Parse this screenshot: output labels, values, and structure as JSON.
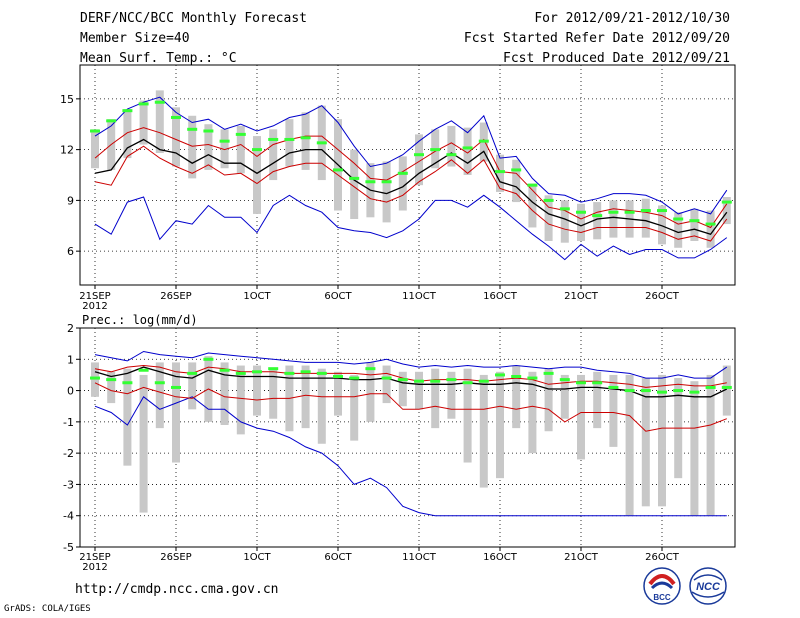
{
  "header": {
    "title": "DERF/NCC/BCC Monthly Forecast",
    "member_size": "Member Size=40",
    "variable": "Mean Surf. Temp.: °C",
    "period": "For 2012/09/21-2012/10/30",
    "refer_date": "Fcst Started Refer Date 2012/09/20",
    "produced_date": "Fcst Produced Date 2012/09/21"
  },
  "footer": {
    "url": "http://cmdp.ncc.cma.gov.cn",
    "grads": "GrADS: COLA/IGES",
    "logo_left": "BCC",
    "logo_right": "NCC"
  },
  "colors": {
    "max": "#0000cc",
    "min": "#0000cc",
    "upper": "#cc0000",
    "lower": "#cc0000",
    "mean": "#000000",
    "box": "#c8c8c8",
    "median": "#33ff33"
  },
  "chart_data": [
    {
      "type": "line",
      "title": "Mean Surf. Temp.: °C",
      "ylim": [
        4,
        17
      ],
      "yticks": [
        6,
        9,
        12,
        15
      ],
      "xticks": [
        {
          "day": 0,
          "label": "21SEP",
          "sub": "2012"
        },
        {
          "day": 5,
          "label": "26SEP"
        },
        {
          "day": 10,
          "label": "1OCT"
        },
        {
          "day": 15,
          "label": "6OCT"
        },
        {
          "day": 20,
          "label": "11OCT"
        },
        {
          "day": 25,
          "label": "16OCT"
        },
        {
          "day": 30,
          "label": "21OCT"
        },
        {
          "day": 35,
          "label": "26OCT"
        }
      ],
      "series": {
        "max": [
          12.8,
          13.4,
          14.4,
          14.8,
          15.1,
          14.2,
          13.6,
          13.8,
          13.2,
          13.5,
          13.1,
          13.4,
          13.9,
          14.1,
          14.6,
          13.6,
          12.2,
          11.0,
          11.2,
          11.7,
          12.5,
          13.2,
          13.7,
          13.0,
          14.0,
          11.5,
          11.6,
          10.3,
          9.4,
          9.3,
          8.9,
          9.1,
          9.4,
          9.4,
          9.3,
          8.9,
          8.2,
          8.5,
          8.2,
          9.6
        ],
        "upper": [
          11.5,
          12.3,
          13.0,
          13.3,
          13.0,
          12.6,
          12.2,
          12.3,
          12.0,
          12.3,
          11.6,
          12.3,
          12.6,
          12.8,
          12.8,
          12.0,
          11.2,
          10.3,
          10.2,
          10.7,
          11.3,
          11.9,
          12.4,
          11.8,
          12.6,
          10.7,
          10.6,
          9.6,
          8.6,
          8.4,
          7.9,
          8.3,
          8.5,
          8.4,
          8.3,
          8.1,
          7.6,
          7.8,
          7.4,
          8.8
        ],
        "mean": [
          10.6,
          10.8,
          12.1,
          12.6,
          12.0,
          11.8,
          11.2,
          11.7,
          11.2,
          11.2,
          10.6,
          11.2,
          11.8,
          12.0,
          12.0,
          11.1,
          10.2,
          9.6,
          9.4,
          9.8,
          10.6,
          11.2,
          11.8,
          11.2,
          11.9,
          10.1,
          9.8,
          8.9,
          8.2,
          7.9,
          7.5,
          7.9,
          8.0,
          7.9,
          7.8,
          7.5,
          7.1,
          7.3,
          7.0,
          8.3
        ],
        "lower": [
          10.1,
          9.9,
          11.6,
          12.2,
          11.5,
          11.0,
          10.6,
          11.1,
          10.5,
          10.6,
          10.0,
          10.7,
          11.0,
          11.2,
          11.2,
          10.5,
          9.8,
          9.1,
          8.9,
          9.3,
          10.1,
          10.7,
          11.4,
          10.6,
          11.4,
          9.7,
          9.4,
          8.4,
          7.6,
          7.3,
          7.1,
          7.4,
          7.4,
          7.4,
          7.4,
          7.1,
          6.7,
          6.9,
          6.6,
          7.9
        ],
        "min": [
          7.6,
          7.0,
          8.9,
          9.2,
          6.7,
          7.8,
          7.6,
          8.7,
          8.0,
          8.0,
          7.1,
          8.7,
          9.3,
          8.7,
          8.3,
          7.4,
          7.2,
          7.1,
          6.8,
          7.2,
          7.9,
          9.0,
          9.0,
          8.6,
          9.3,
          8.6,
          7.8,
          7.0,
          6.3,
          5.5,
          6.4,
          5.7,
          6.3,
          5.8,
          6.1,
          6.1,
          5.6,
          5.6,
          6.1,
          6.8
        ],
        "box_top": [
          13.2,
          13.8,
          14.4,
          14.9,
          15.5,
          14.5,
          14.0,
          13.5,
          13.2,
          13.4,
          12.8,
          13.2,
          13.8,
          14.2,
          14.6,
          13.8,
          12.0,
          11.2,
          11.3,
          11.6,
          12.9,
          13.2,
          13.4,
          13.3,
          13.6,
          11.7,
          11.4,
          10.0,
          9.3,
          9.0,
          8.8,
          8.9,
          9.0,
          9.0,
          9.1,
          8.7,
          8.3,
          8.5,
          8.4,
          9.2
        ],
        "box_bottom": [
          10.9,
          10.8,
          11.5,
          12.3,
          11.8,
          11.0,
          10.3,
          10.8,
          10.9,
          10.6,
          8.2,
          10.2,
          11.0,
          10.8,
          10.2,
          8.4,
          7.9,
          8.0,
          7.7,
          8.4,
          9.9,
          10.9,
          11.0,
          10.5,
          11.3,
          9.5,
          8.9,
          7.4,
          6.6,
          6.5,
          6.6,
          6.7,
          6.8,
          6.8,
          6.8,
          6.4,
          6.2,
          6.6,
          6.2,
          7.6
        ],
        "median": [
          13.1,
          13.7,
          14.3,
          14.7,
          14.8,
          13.9,
          13.2,
          13.1,
          12.5,
          12.9,
          12.0,
          12.6,
          12.6,
          12.7,
          12.4,
          10.8,
          10.3,
          10.1,
          10.1,
          10.6,
          11.7,
          12.0,
          11.7,
          12.1,
          12.5,
          10.7,
          10.8,
          9.9,
          9.0,
          8.5,
          8.3,
          8.1,
          8.3,
          8.3,
          8.4,
          8.4,
          7.9,
          7.8,
          7.6,
          8.9
        ]
      }
    },
    {
      "type": "line",
      "title": "Prec.: log(mm/d)",
      "ylim": [
        -5,
        2
      ],
      "yticks": [
        -5,
        -4,
        -3,
        -2,
        -1,
        0,
        1,
        2
      ],
      "xticks": [
        {
          "day": 0,
          "label": "21SEP",
          "sub": "2012"
        },
        {
          "day": 5,
          "label": "26SEP"
        },
        {
          "day": 10,
          "label": "1OCT"
        },
        {
          "day": 15,
          "label": "6OCT"
        },
        {
          "day": 20,
          "label": "11OCT"
        },
        {
          "day": 25,
          "label": "16OCT"
        },
        {
          "day": 30,
          "label": "21OCT"
        },
        {
          "day": 35,
          "label": "26OCT"
        }
      ],
      "series": {
        "max": [
          1.15,
          1.05,
          0.95,
          1.25,
          1.15,
          1.1,
          1.05,
          1.2,
          1.15,
          1.1,
          1.05,
          1.0,
          0.95,
          0.9,
          0.9,
          0.9,
          0.85,
          0.9,
          1.0,
          0.85,
          0.75,
          0.8,
          0.75,
          0.8,
          0.75,
          0.75,
          0.8,
          0.75,
          0.7,
          0.75,
          0.75,
          0.65,
          0.6,
          0.55,
          0.4,
          0.4,
          0.5,
          0.4,
          0.4,
          0.75
        ],
        "upper": [
          0.7,
          0.6,
          0.75,
          0.8,
          0.75,
          0.6,
          0.55,
          0.75,
          0.7,
          0.6,
          0.6,
          0.6,
          0.55,
          0.55,
          0.55,
          0.55,
          0.55,
          0.5,
          0.55,
          0.4,
          0.3,
          0.35,
          0.35,
          0.35,
          0.3,
          0.35,
          0.4,
          0.35,
          0.2,
          0.25,
          0.3,
          0.3,
          0.25,
          0.2,
          0.1,
          0.15,
          0.2,
          0.15,
          0.15,
          0.25
        ],
        "mean": [
          0.6,
          0.45,
          0.55,
          0.75,
          0.6,
          0.45,
          0.4,
          0.65,
          0.5,
          0.45,
          0.45,
          0.45,
          0.4,
          0.4,
          0.4,
          0.4,
          0.35,
          0.35,
          0.4,
          0.25,
          0.2,
          0.2,
          0.2,
          0.25,
          0.2,
          0.2,
          0.25,
          0.2,
          0.05,
          0.05,
          0.1,
          0.1,
          0.05,
          0.0,
          -0.2,
          -0.2,
          -0.15,
          -0.2,
          -0.2,
          0.05
        ],
        "lower": [
          0.25,
          0.0,
          -0.1,
          0.1,
          -0.05,
          -0.2,
          -0.25,
          0.05,
          -0.2,
          -0.25,
          -0.3,
          -0.25,
          -0.25,
          -0.15,
          -0.2,
          -0.2,
          -0.2,
          -0.1,
          -0.1,
          -0.6,
          -0.6,
          -0.5,
          -0.6,
          -0.6,
          -0.6,
          -0.5,
          -0.6,
          -0.5,
          -0.6,
          -1.0,
          -0.7,
          -0.7,
          -0.7,
          -0.8,
          -1.3,
          -1.2,
          -1.2,
          -1.2,
          -1.1,
          -0.9
        ],
        "min": [
          -0.5,
          -0.7,
          -1.1,
          -0.2,
          -0.6,
          -0.4,
          -0.2,
          -0.6,
          -0.6,
          -1.0,
          -1.2,
          -1.3,
          -1.5,
          -1.8,
          -2.0,
          -2.4,
          -3.0,
          -2.8,
          -3.1,
          -3.7,
          -3.9,
          -4.0,
          -4.0,
          -4.0,
          -4.0,
          -4.0,
          -4.0,
          -4.0,
          -4.0,
          -4.0,
          -4.0,
          -4.0,
          -4.0,
          -4.0,
          -4.0,
          -4.0,
          -4.0,
          -4.0,
          -4.0,
          -4.0
        ],
        "box_top": [
          0.9,
          0.6,
          0.7,
          0.5,
          0.9,
          0.9,
          0.9,
          1.1,
          0.9,
          0.8,
          0.8,
          0.7,
          0.8,
          0.8,
          0.7,
          0.6,
          0.5,
          0.9,
          0.8,
          0.6,
          0.6,
          0.7,
          0.6,
          0.7,
          0.5,
          0.6,
          0.8,
          0.6,
          0.7,
          0.5,
          0.5,
          0.6,
          0.5,
          0.5,
          0.4,
          0.5,
          0.4,
          0.3,
          0.5,
          0.8
        ],
        "box_bottom": [
          -0.2,
          -0.4,
          -2.4,
          -3.9,
          -1.2,
          -2.3,
          -0.6,
          -1.0,
          -1.1,
          -1.4,
          -0.8,
          -0.9,
          -1.3,
          -1.2,
          -1.7,
          -0.8,
          -1.6,
          -1.0,
          -0.4,
          -0.5,
          -0.6,
          -1.2,
          -0.9,
          -2.3,
          -3.1,
          -2.8,
          -1.2,
          -2.0,
          -1.3,
          -0.9,
          -2.2,
          -1.2,
          -1.8,
          -4.0,
          -3.7,
          -3.7,
          -2.8,
          -4.0,
          -4.0,
          -0.8
        ],
        "median": [
          0.4,
          0.35,
          0.25,
          0.65,
          0.25,
          0.1,
          0.55,
          1.0,
          0.65,
          0.55,
          0.6,
          0.7,
          0.55,
          0.6,
          0.55,
          0.45,
          0.4,
          0.7,
          0.4,
          0.35,
          0.3,
          0.3,
          0.35,
          0.25,
          0.3,
          0.5,
          0.45,
          0.4,
          0.55,
          0.35,
          0.25,
          0.25,
          0.1,
          0.0,
          0.0,
          -0.05,
          0.0,
          -0.05,
          0.1,
          0.1
        ]
      }
    }
  ]
}
